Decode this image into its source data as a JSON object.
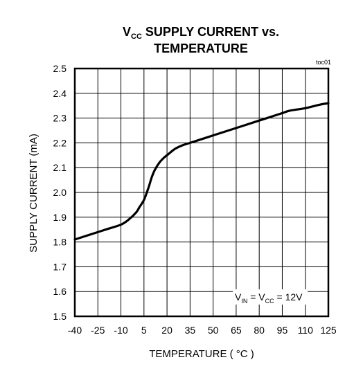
{
  "chart_data": {
    "type": "line",
    "title_line1_main": "V",
    "title_line1_sub": "CC",
    "title_line1_rest": " SUPPLY CURRENT vs.",
    "title_line2": "TEMPERATURE",
    "corner_tag": "toc01",
    "xlabel": "TEMPERATURE ( °C )",
    "ylabel": "SUPPLY CURRENT (mA)",
    "xlim": [
      -40,
      125
    ],
    "ylim": [
      1.5,
      2.5
    ],
    "x_ticks": [
      -40,
      -25,
      -10,
      5,
      20,
      35,
      50,
      65,
      80,
      95,
      110,
      125
    ],
    "x_tick_labels": [
      "-40",
      "-25",
      "-10",
      "5",
      "20",
      "35",
      "50",
      "65",
      "80",
      "95",
      "110",
      "125"
    ],
    "y_ticks": [
      1.5,
      1.6,
      1.7,
      1.8,
      1.9,
      2.0,
      2.1,
      2.2,
      2.3,
      2.4,
      2.5
    ],
    "y_tick_labels": [
      "1.5",
      "1.6",
      "1.7",
      "1.8",
      "1.9",
      "2.0",
      "2.1",
      "2.2",
      "2.3",
      "2.4",
      "2.5"
    ],
    "grid": true,
    "annotation": {
      "v_in": "V",
      "v_in_sub": "IN",
      "eq1": " = V",
      "v_cc_sub": "CC",
      "eq2": " = 12V"
    },
    "series": [
      {
        "x": [
          -40,
          -30,
          -20,
          -10,
          -5,
          0,
          2,
          5,
          8,
          10,
          12,
          15,
          18,
          20,
          25,
          30,
          35,
          40,
          50,
          60,
          65,
          70,
          80,
          90,
          95,
          100,
          110,
          120,
          125
        ],
        "y": [
          1.81,
          1.83,
          1.85,
          1.87,
          1.89,
          1.92,
          1.94,
          1.97,
          2.02,
          2.06,
          2.09,
          2.12,
          2.14,
          2.15,
          2.175,
          2.19,
          2.2,
          2.21,
          2.23,
          2.25,
          2.26,
          2.27,
          2.29,
          2.31,
          2.32,
          2.33,
          2.34,
          2.355,
          2.36
        ]
      }
    ]
  }
}
